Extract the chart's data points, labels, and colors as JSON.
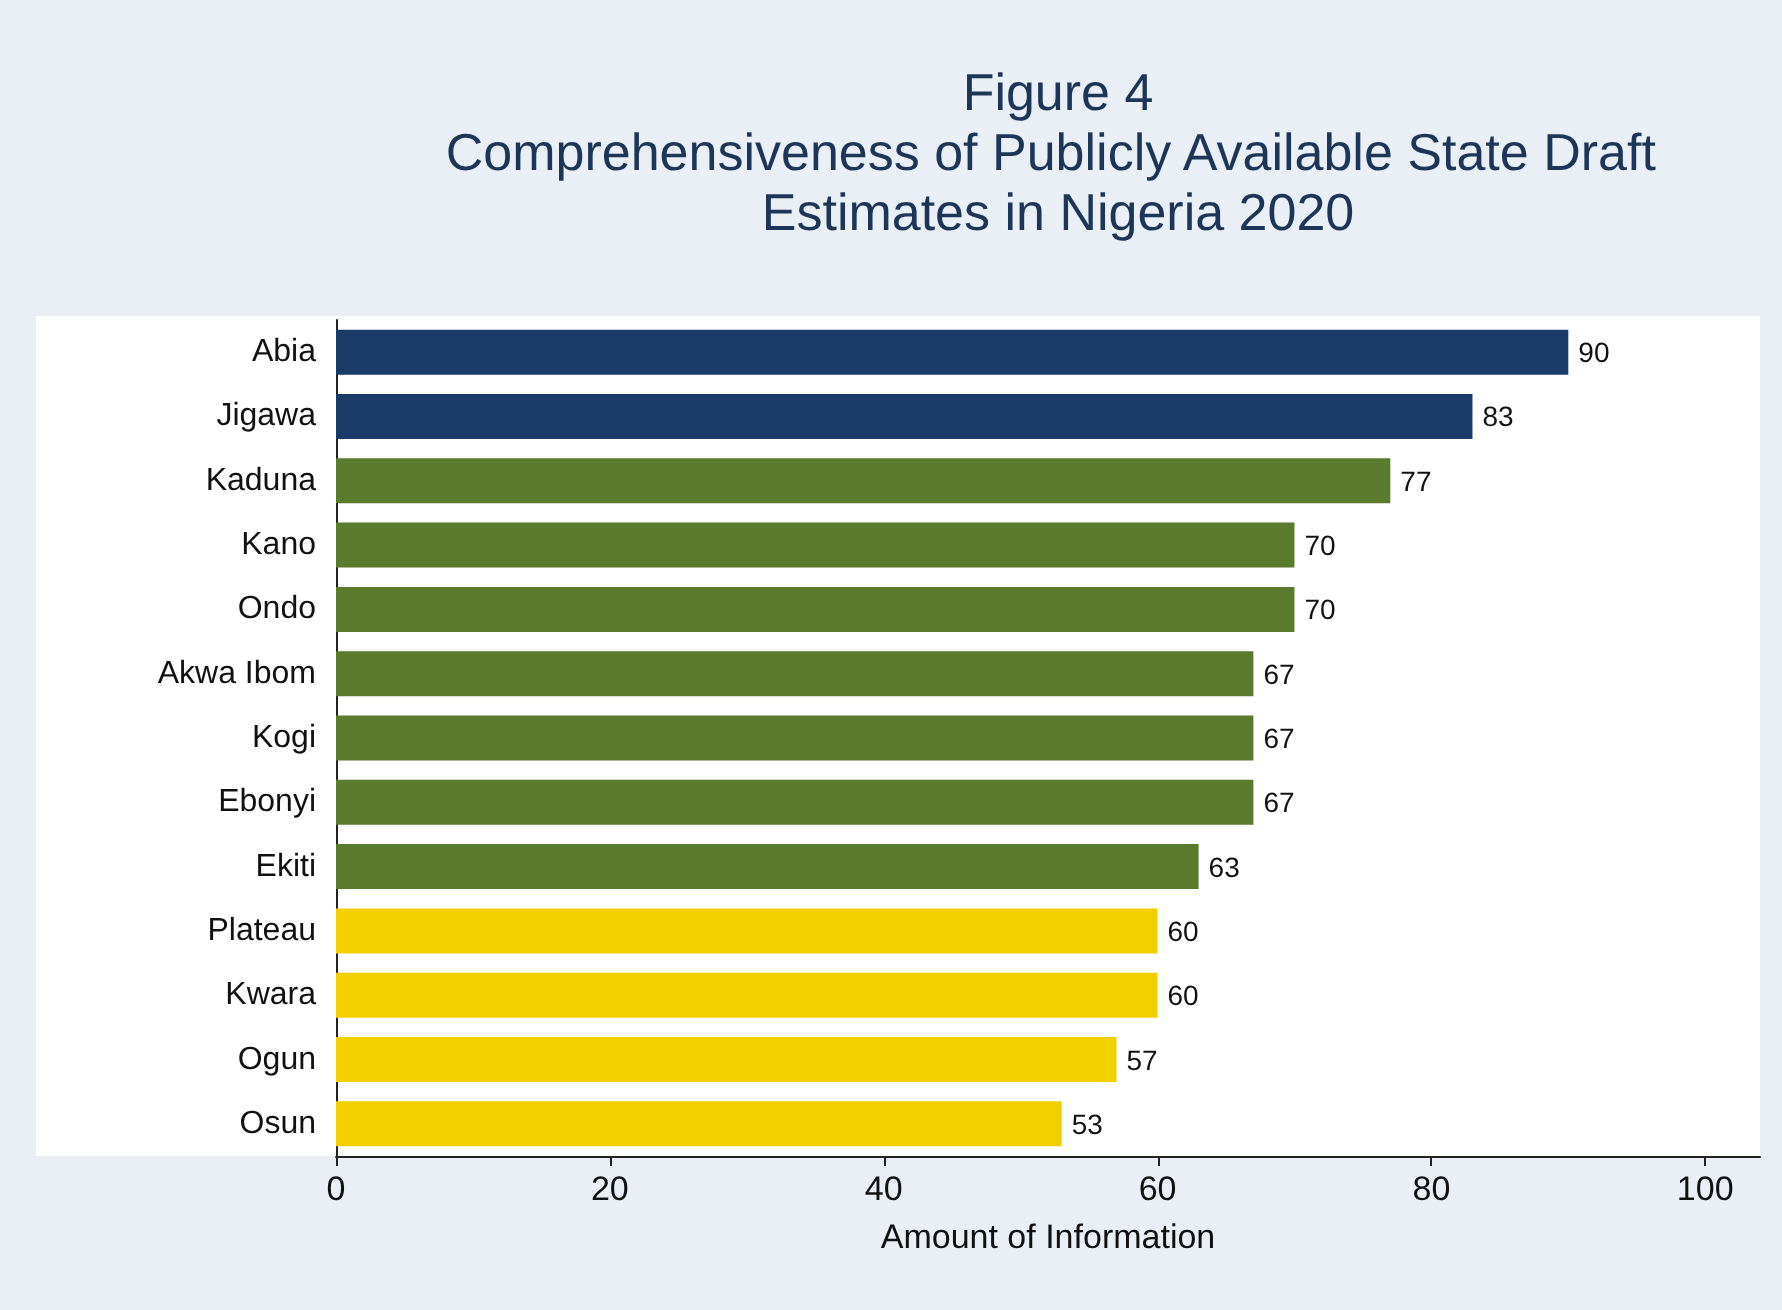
{
  "chart_data": {
    "type": "bar",
    "orientation": "horizontal",
    "title": "Figure 4",
    "subtitle": "Comprehensiveness of Publicly Available State Draft Estimates in Nigeria 2020",
    "xlabel": "Amount of Information",
    "categories": [
      "Abia",
      "Jigawa",
      "Kaduna",
      "Kano",
      "Ondo",
      "Akwa Ibom",
      "Kogi",
      "Ebonyi",
      "Ekiti",
      "Plateau",
      "Kwara",
      "Ogun",
      "Osun"
    ],
    "values": [
      90,
      83,
      77,
      70,
      70,
      67,
      67,
      67,
      63,
      60,
      60,
      57,
      53
    ],
    "colors": [
      "#1a3a68",
      "#1a3a68",
      "#5a7a2e",
      "#5a7a2e",
      "#5a7a2e",
      "#5a7a2e",
      "#5a7a2e",
      "#5a7a2e",
      "#5a7a2e",
      "#f2d000",
      "#f2d000",
      "#f2d000",
      "#f2d000"
    ],
    "xlim": [
      0,
      104
    ],
    "xticks": [
      0,
      20,
      40,
      60,
      80,
      100
    ],
    "data_labels": true,
    "grid": false
  }
}
